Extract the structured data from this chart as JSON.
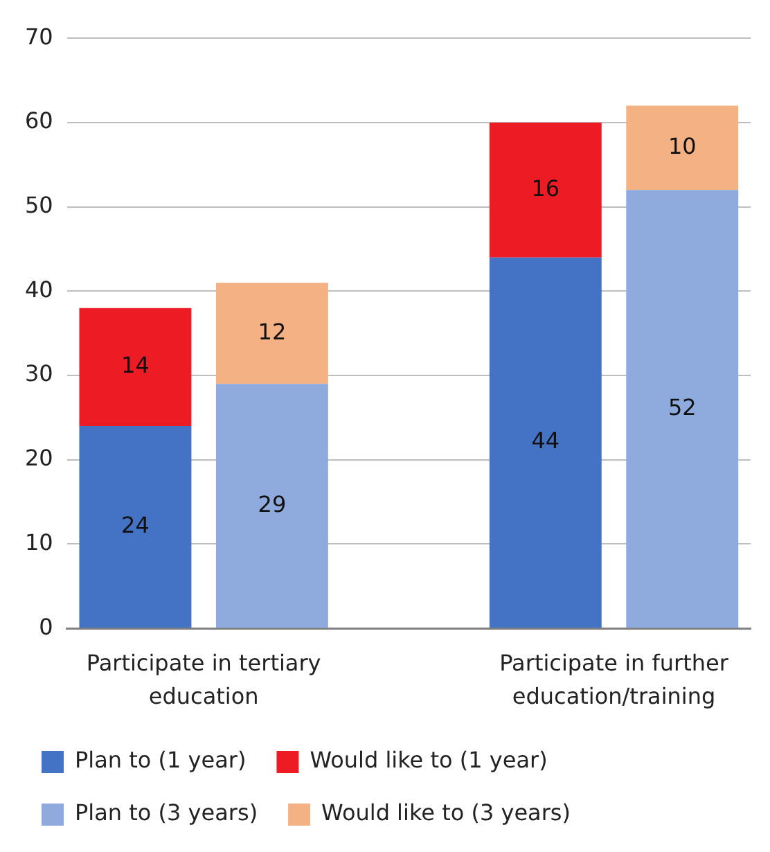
{
  "chart_data": {
    "type": "bar",
    "stacked": true,
    "categories": [
      "Participate in tertiary education",
      null,
      null,
      "Participate in further education/training",
      null
    ],
    "series": [
      {
        "name": "Plan to (1 year)",
        "color": "#4472c4",
        "values": [
          24,
          null,
          null,
          44,
          null
        ]
      },
      {
        "name": "Would like to (1 year)",
        "color": "#ed1c24",
        "values": [
          14,
          null,
          null,
          16,
          null
        ]
      },
      {
        "name": "Plan to (3 years)",
        "color": "#8faadc",
        "values": [
          null,
          29,
          null,
          null,
          52
        ]
      },
      {
        "name": "Would like to (3 years)",
        "color": "#f4b183",
        "values": [
          null,
          12,
          null,
          null,
          10
        ]
      }
    ],
    "ylim": [
      0,
      70
    ],
    "yticks": [
      0,
      10,
      20,
      30,
      40,
      50,
      60,
      70
    ],
    "grid": "y",
    "legend": "bottom",
    "data_labels": true
  }
}
